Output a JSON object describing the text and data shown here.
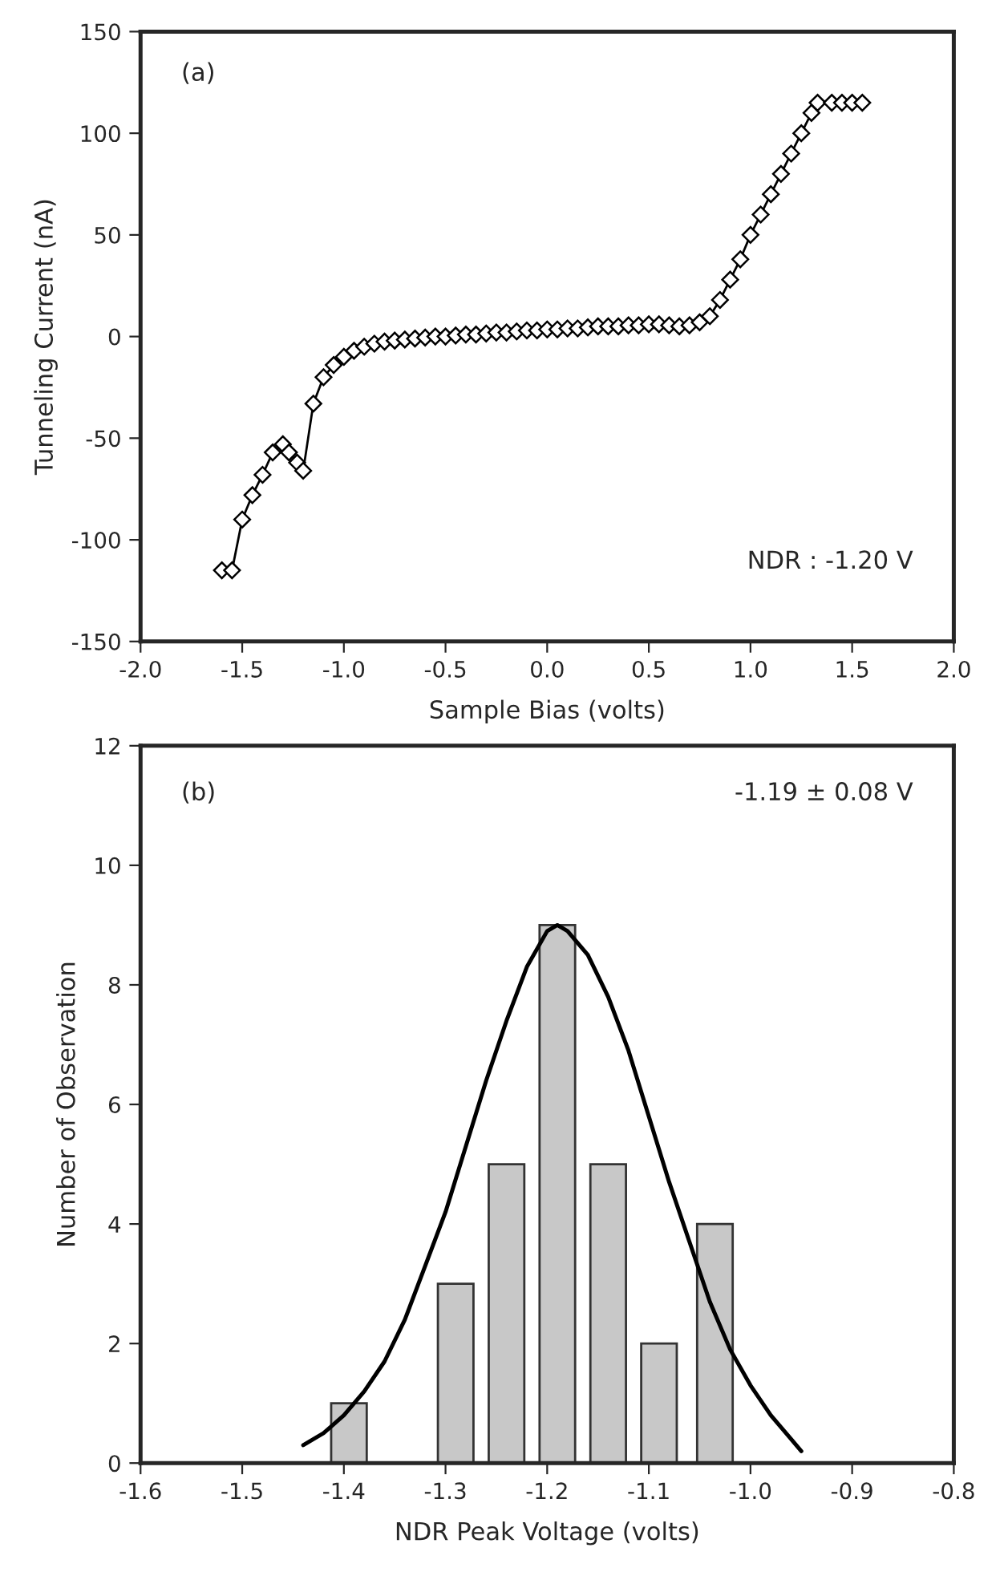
{
  "chart_data": [
    {
      "type": "line",
      "xlabel": "Sample Bias (volts)",
      "ylabel": "Tunneling Current (nA)",
      "marker": "diamond",
      "line_style": "solid",
      "annotations": [
        "(a)",
        "NDR : -1.20 V"
      ],
      "xlim": [
        -2.0,
        2.0
      ],
      "ylim": [
        -150,
        150
      ],
      "xticks": [
        {
          "value": -2.0,
          "label": "-2.0"
        },
        {
          "value": -1.5,
          "label": "-1.5"
        },
        {
          "value": -1.0,
          "label": "-1.0"
        },
        {
          "value": -0.5,
          "label": "-0.5"
        },
        {
          "value": 0.0,
          "label": "0.0"
        },
        {
          "value": 0.5,
          "label": "0.5"
        },
        {
          "value": 1.0,
          "label": "1.0"
        },
        {
          "value": 1.5,
          "label": "1.5"
        },
        {
          "value": 2.0,
          "label": "2.0"
        }
      ],
      "yticks": [
        -150,
        -100,
        -50,
        0,
        50,
        100,
        150
      ],
      "series": [
        {
          "color": "#000000",
          "x": [
            -1.6,
            -1.55,
            -1.5,
            -1.45,
            -1.4,
            -1.35,
            -1.3,
            -1.27,
            -1.23,
            -1.2,
            -1.15,
            -1.1,
            -1.05,
            -1.0,
            -0.95,
            -0.9,
            -0.85,
            -0.8,
            -0.75,
            -0.7,
            -0.65,
            -0.6,
            -0.55,
            -0.5,
            -0.45,
            -0.4,
            -0.35,
            -0.3,
            -0.25,
            -0.2,
            -0.15,
            -0.1,
            -0.05,
            0.0,
            0.05,
            0.1,
            0.15,
            0.2,
            0.25,
            0.3,
            0.35,
            0.4,
            0.45,
            0.5,
            0.55,
            0.6,
            0.65,
            0.7,
            0.75,
            0.8,
            0.85,
            0.9,
            0.95,
            1.0,
            1.05,
            1.1,
            1.15,
            1.2,
            1.25,
            1.3,
            1.33,
            1.4,
            1.45,
            1.5,
            1.55
          ],
          "values": [
            -115,
            -115,
            -90,
            -78,
            -68,
            -57,
            -53,
            -57,
            -62,
            -66,
            -33,
            -20,
            -14,
            -10,
            -7,
            -5,
            -3.5,
            -2.5,
            -2,
            -1.5,
            -1,
            -0.5,
            0,
            0,
            0.5,
            1,
            1,
            1.5,
            2,
            2,
            2.5,
            3,
            3,
            3.5,
            3.5,
            4,
            4,
            4.5,
            5,
            5,
            5,
            5.5,
            5.5,
            6,
            6,
            5.5,
            5,
            5.5,
            7,
            10,
            18,
            28,
            38,
            50,
            60,
            70,
            80,
            90,
            100,
            110,
            115,
            115,
            115,
            115,
            115
          ]
        }
      ]
    },
    {
      "type": "bar",
      "xlabel": "NDR Peak Voltage (volts)",
      "ylabel": "Number of Observation",
      "annotations": [
        "(b)",
        "-1.19 ± 0.08 V"
      ],
      "xlim": [
        -1.6,
        -0.8
      ],
      "ylim": [
        0,
        12
      ],
      "xticks": [
        {
          "value": -1.6,
          "label": "-1.6"
        },
        {
          "value": -1.5,
          "label": "-1.5"
        },
        {
          "value": -1.4,
          "label": "-1.4"
        },
        {
          "value": -1.3,
          "label": "-1.3"
        },
        {
          "value": -1.2,
          "label": "-1.2"
        },
        {
          "value": -1.1,
          "label": "-1.1"
        },
        {
          "value": -1.0,
          "label": "-1.0"
        },
        {
          "value": -0.9,
          "label": "-0.9"
        },
        {
          "value": -0.8,
          "label": "-0.8"
        }
      ],
      "yticks": [
        0,
        2,
        4,
        6,
        8,
        10,
        12
      ],
      "series": [
        {
          "type": "bar",
          "color": "#c8c8c8",
          "x": [
            -1.395,
            -1.29,
            -1.24,
            -1.19,
            -1.14,
            -1.09,
            -1.035
          ],
          "values": [
            1,
            3,
            5,
            9,
            5,
            2,
            4
          ]
        },
        {
          "type": "line",
          "color": "#000000",
          "marker": "none",
          "x": [
            -1.44,
            -1.42,
            -1.4,
            -1.38,
            -1.36,
            -1.34,
            -1.32,
            -1.3,
            -1.28,
            -1.26,
            -1.24,
            -1.22,
            -1.2,
            -1.19,
            -1.18,
            -1.16,
            -1.14,
            -1.12,
            -1.1,
            -1.08,
            -1.06,
            -1.04,
            -1.02,
            -1.0,
            -0.98,
            -0.96,
            -0.95
          ],
          "values": [
            0.3,
            0.5,
            0.8,
            1.2,
            1.7,
            2.4,
            3.3,
            4.2,
            5.3,
            6.4,
            7.4,
            8.3,
            8.9,
            9.0,
            8.9,
            8.5,
            7.8,
            6.9,
            5.8,
            4.7,
            3.7,
            2.7,
            1.9,
            1.3,
            0.8,
            0.4,
            0.2
          ]
        }
      ]
    }
  ]
}
